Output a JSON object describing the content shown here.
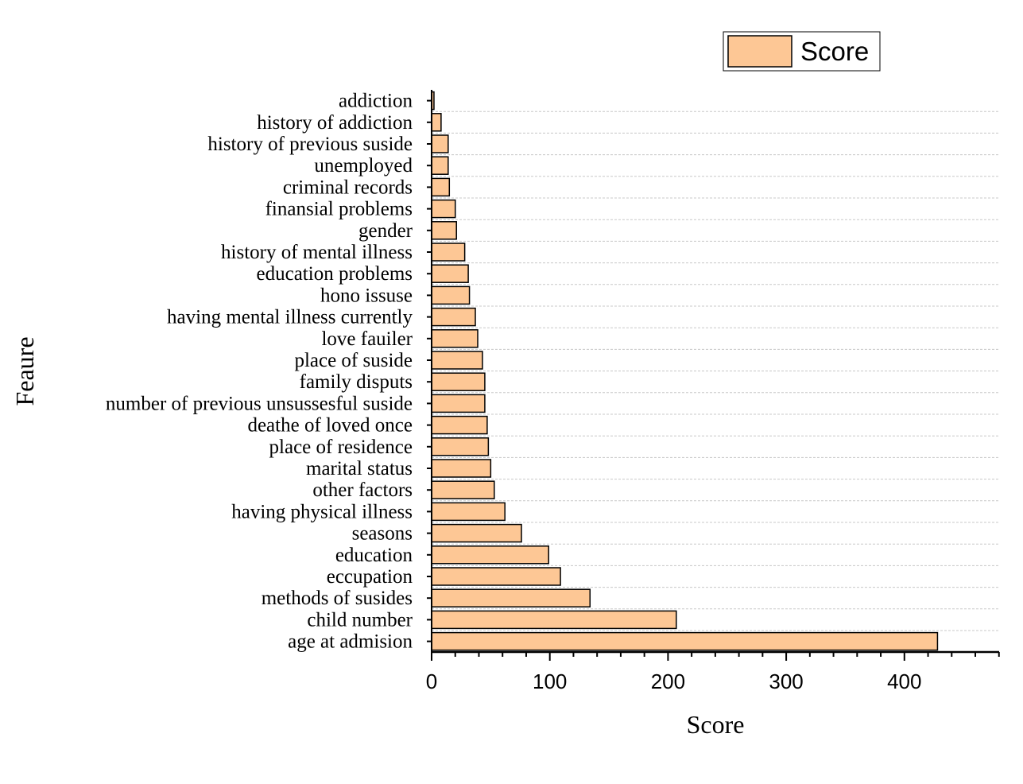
{
  "chart_data": {
    "type": "bar",
    "orientation": "horizontal",
    "title": "",
    "xlabel": "Score",
    "ylabel": "Feaure",
    "xlim": [
      0,
      480
    ],
    "xticks": [
      0,
      100,
      200,
      300,
      400
    ],
    "minor_tick_step": 20,
    "grid": "horizontal dashed",
    "legend": {
      "position": "top-right",
      "entries": [
        "Score"
      ]
    },
    "bar_color": "#fdc795",
    "bar_edge_color": "#000000",
    "categories": [
      "age at admision",
      "child number",
      "methods of susides",
      "eccupation",
      "education",
      "seasons",
      "having physical illness",
      "other factors",
      "marital status",
      "place of residence",
      "deathe of loved once",
      "number of previous unsussesful suside",
      "family disputs",
      "place of suside",
      "love fauiler",
      "having mental illness currently",
      "hono issuse",
      "education problems",
      "history of mental illness",
      "gender",
      "finansial problems",
      "criminal records",
      "unemployed",
      "history of previous suside",
      "history of addiction",
      "addiction"
    ],
    "series": [
      {
        "name": "Score",
        "values": [
          428,
          207,
          134,
          109,
          99,
          76,
          62,
          53,
          50,
          48,
          47,
          45,
          45,
          43,
          39,
          37,
          32,
          31,
          28,
          21,
          20,
          15,
          14,
          14,
          8,
          2
        ]
      }
    ]
  }
}
